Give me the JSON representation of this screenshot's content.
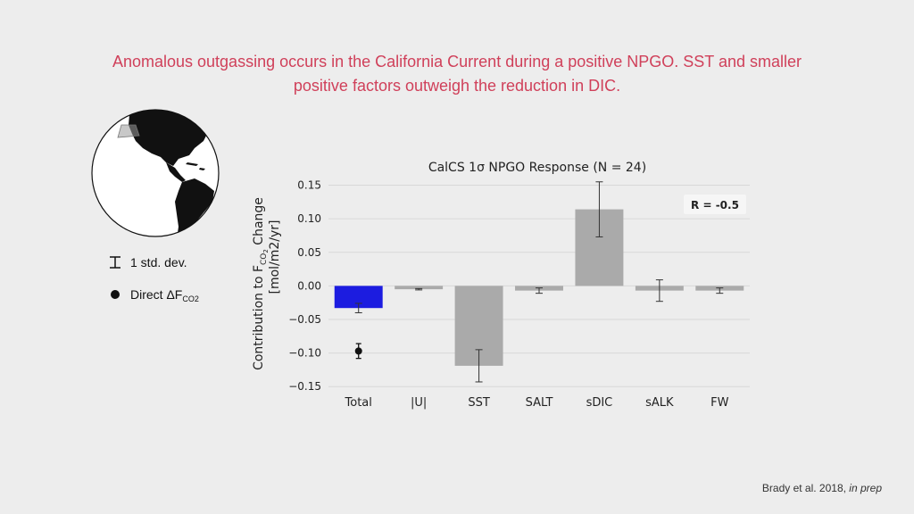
{
  "slide": {
    "title_line1": "Anomalous outgassing occurs in the California Current during a positive NPGO. SST and smaller",
    "title_line2": "positive factors outweigh the reduction in DIC.",
    "citation_authors": "Brady et al. 2018,",
    "citation_status": "in prep"
  },
  "legend": {
    "errorbar_label": "1 std. dev.",
    "point_label_main": "Direct ΔF",
    "point_label_sub": "CO2"
  },
  "colors": {
    "total_bar": "#1c1ce0",
    "component_bar": "#aaaaaa",
    "title_text": "#d0405a",
    "background": "#ededed"
  },
  "globe": {
    "icon": "globe-map-icon"
  },
  "chart_data": {
    "type": "bar",
    "title": "CalCS 1σ NPGO Response (N = 24)",
    "ylabel_line1_prefix": "Contribution to F",
    "ylabel_line1_sub": "CO",
    "ylabel_line1_sub2": "2",
    "ylabel_line1_suffix": " Change",
    "ylabel_line2": "[mol/m2/yr]",
    "categories": [
      "Total",
      "|U|",
      "SST",
      "SALT",
      "sDIC",
      "sALK",
      "FW"
    ],
    "values": [
      -0.033,
      -0.005,
      -0.119,
      -0.007,
      0.114,
      -0.007,
      -0.007
    ],
    "errors": [
      0.007,
      0.001,
      0.024,
      0.004,
      0.041,
      0.016,
      0.004
    ],
    "direct_value": -0.097,
    "direct_error": 0.011,
    "annotation": "R = -0.5",
    "ylim": [
      -0.155,
      0.16
    ],
    "yticks": [
      0.15,
      0.1,
      0.05,
      0.0,
      -0.05,
      -0.1,
      -0.15
    ],
    "ytick_labels": [
      "0.15",
      "0.10",
      "0.05",
      "0.00",
      "−0.05",
      "−0.10",
      "−0.15"
    ],
    "grid": true
  }
}
